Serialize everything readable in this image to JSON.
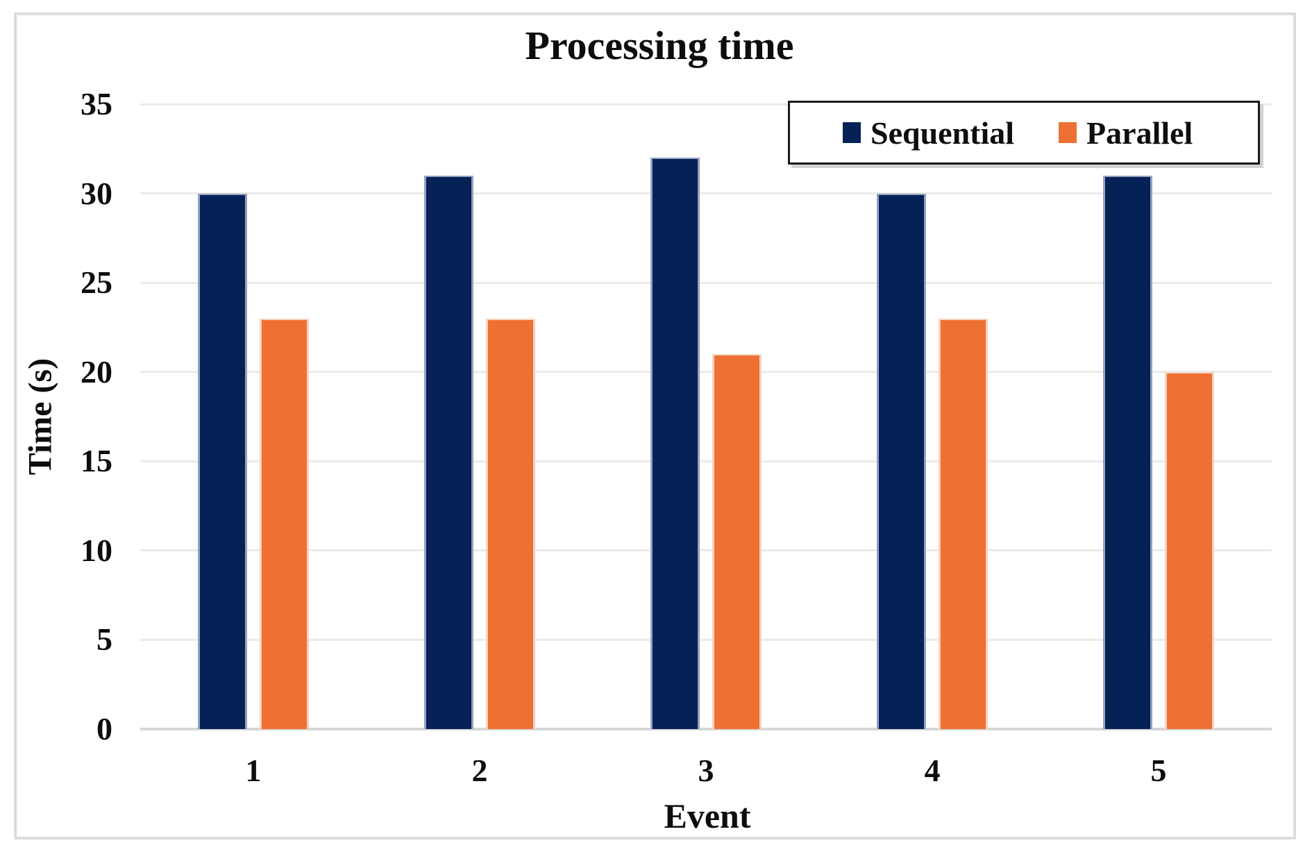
{
  "chart_data": {
    "type": "bar",
    "title": "Processing time",
    "xlabel": "Event",
    "ylabel": "Time (s)",
    "categories": [
      "1",
      "2",
      "3",
      "4",
      "5"
    ],
    "series": [
      {
        "name": "Sequential",
        "color": "#062155",
        "edge_color": "#94a2c1",
        "values": [
          30,
          31,
          32,
          30,
          31
        ]
      },
      {
        "name": "Parallel",
        "color": "#ee7032",
        "edge_color": "#f7d3bd",
        "values": [
          23,
          23,
          21,
          23,
          20
        ]
      }
    ],
    "ylim": [
      0,
      35
    ],
    "ytick_step": 5,
    "yticks": [
      "0",
      "5",
      "10",
      "15",
      "20",
      "25",
      "30",
      "35"
    ],
    "grid": "horizontal",
    "gridline_color": "#ebebeb",
    "axis_line_color": "#d6d6d6",
    "legend_position": "top-right",
    "legend_border_color": "#1a1a1a",
    "outer_border_color": "#dcdcdc",
    "background": "#ffffff"
  }
}
